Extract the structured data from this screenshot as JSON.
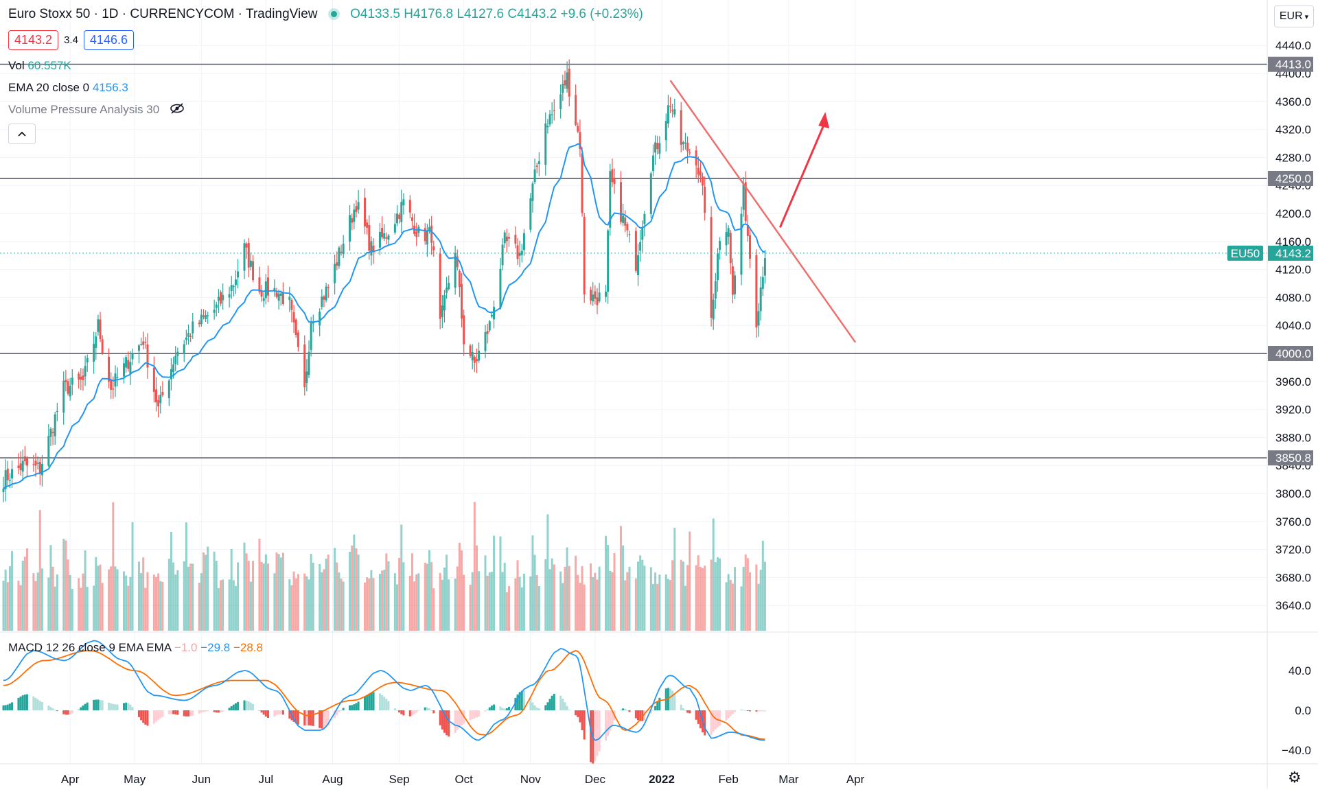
{
  "header": {
    "symbol": "Euro Stoxx 50 · 1D · CURRENCYCOM · TradingView",
    "o": "O4133.5",
    "h": "H4176.8",
    "l": "L4127.6",
    "c": "C4143.2",
    "change": "+9.6 (+0.23%)"
  },
  "price_boxes": {
    "sell": "4143.2",
    "spread": "3.4",
    "buy": "4146.6"
  },
  "indicators": {
    "vol_label": "Vol",
    "vol_value": "60.557K",
    "ema_label": "EMA 20 close 0",
    "ema_value": "4156.3",
    "vpa_label": "Volume Pressure Analysis 30",
    "macd_label": "MACD 12 26 close 9 EMA EMA",
    "macd_hist": "−1.0",
    "macd_line": "−29.8",
    "macd_signal": "−28.8"
  },
  "currency": "EUR",
  "symbol_tag": "EU50",
  "colors": {
    "up": "#26a69a",
    "down": "#ef5350",
    "ema": "#2196f3",
    "signal": "#ff6d00",
    "trendline": "#ef6e6e",
    "arrow": "#f23645",
    "level": "#787b86"
  },
  "icons": {
    "eye": "eye-crossed-icon",
    "collapse": "chevron-up-icon",
    "settings": "gear-icon"
  },
  "chart_data": [
    {
      "type": "candlestick",
      "price_axis_ticks": [
        "4440.0",
        "4400.0",
        "4360.0",
        "4320.0",
        "4280.0",
        "4240.0",
        "4200.0",
        "4160.0",
        "4120.0",
        "4080.0",
        "4040.0",
        "4000.0",
        "3960.0",
        "3920.0",
        "3880.0",
        "3840.0",
        "3800.0",
        "3760.0",
        "3720.0",
        "3680.0",
        "3640.0"
      ],
      "time_axis_ticks": [
        "Apr",
        "May",
        "Jun",
        "Jul",
        "Aug",
        "Sep",
        "Oct",
        "Nov",
        "Dec",
        "2022",
        "Feb",
        "Mar",
        "Apr"
      ],
      "horizontal_levels": [
        {
          "value": 4413.0,
          "label": "4413.0"
        },
        {
          "value": 4250.0,
          "label": "4250.0"
        },
        {
          "value": 4000.0,
          "label": "4000.0"
        },
        {
          "value": 3850.8,
          "label": "3850.8"
        }
      ],
      "last_price": {
        "value": 4143.2,
        "label": "4143.2"
      },
      "trendline": {
        "from": [
          "2022-01-05",
          4390
        ],
        "to": [
          "2022-04-01",
          4016
        ]
      },
      "arrow": {
        "from": [
          "2022-02-25",
          4180
        ],
        "to": [
          "2022-03-18",
          4345
        ]
      },
      "anchors": [
        [
          "2021-03-01",
          3820
        ],
        [
          "2021-03-10",
          3840
        ],
        [
          "2021-03-18",
          3835
        ],
        [
          "2021-03-29",
          3950
        ],
        [
          "2021-04-07",
          3960
        ],
        [
          "2021-04-14",
          4040
        ],
        [
          "2021-04-20",
          3950
        ],
        [
          "2021-04-27",
          3985
        ],
        [
          "2021-05-05",
          4020
        ],
        [
          "2021-05-12",
          3920
        ],
        [
          "2021-05-20",
          4000
        ],
        [
          "2021-05-28",
          4035
        ],
        [
          "2021-06-08",
          4065
        ],
        [
          "2021-06-16",
          4100
        ],
        [
          "2021-06-21",
          4150
        ],
        [
          "2021-06-28",
          4090
        ],
        [
          "2021-07-06",
          4090
        ],
        [
          "2021-07-12",
          4070
        ],
        [
          "2021-07-19",
          3945
        ],
        [
          "2021-07-22",
          4050
        ],
        [
          "2021-07-30",
          4095
        ],
        [
          "2021-08-06",
          4160
        ],
        [
          "2021-08-12",
          4215
        ],
        [
          "2021-08-19",
          4150
        ],
        [
          "2021-08-26",
          4170
        ],
        [
          "2021-09-03",
          4215
        ],
        [
          "2021-09-10",
          4170
        ],
        [
          "2021-09-16",
          4170
        ],
        [
          "2021-09-20",
          4040
        ],
        [
          "2021-09-27",
          4150
        ],
        [
          "2021-10-01",
          4020
        ],
        [
          "2021-10-06",
          3985
        ],
        [
          "2021-10-13",
          4040
        ],
        [
          "2021-10-20",
          4160
        ],
        [
          "2021-10-27",
          4140
        ],
        [
          "2021-11-01",
          4220
        ],
        [
          "2021-11-08",
          4330
        ],
        [
          "2021-11-12",
          4345
        ],
        [
          "2021-11-18",
          4395
        ],
        [
          "2021-11-24",
          4300
        ],
        [
          "2021-11-26",
          4090
        ],
        [
          "2021-11-30",
          4080
        ],
        [
          "2021-12-06",
          4080
        ],
        [
          "2021-12-08",
          4250
        ],
        [
          "2021-12-13",
          4200
        ],
        [
          "2021-12-20",
          4130
        ],
        [
          "2021-12-27",
          4270
        ],
        [
          "2022-01-05",
          4360
        ],
        [
          "2022-01-10",
          4300
        ],
        [
          "2022-01-17",
          4280
        ],
        [
          "2022-01-21",
          4210
        ],
        [
          "2022-01-24",
          4040
        ],
        [
          "2022-01-27",
          4150
        ],
        [
          "2022-02-01",
          4190
        ],
        [
          "2022-02-03",
          4080
        ],
        [
          "2022-02-08",
          4230
        ],
        [
          "2022-02-14",
          4050
        ],
        [
          "2022-02-18",
          4143
        ]
      ]
    },
    {
      "type": "bar",
      "series": "volume",
      "note_pattern": [
        0.25,
        0.35,
        0.3,
        0.4,
        0.5,
        0.3,
        0.35,
        0.45,
        0.7,
        0.55,
        0.4,
        0.35,
        0.5,
        0.9,
        0.6,
        0.45,
        0.55,
        0.4,
        0.35,
        0.5,
        0.75,
        0.65,
        0.5,
        0.45
      ]
    },
    {
      "type": "line",
      "series_names": [
        "MACD",
        "Signal",
        "Histogram"
      ],
      "axis_ticks": [
        "40.0",
        "0.0",
        "−40.0"
      ],
      "macd_anchors": [
        [
          "2021-03-01",
          30
        ],
        [
          "2021-03-15",
          60
        ],
        [
          "2021-03-29",
          50
        ],
        [
          "2021-04-12",
          70
        ],
        [
          "2021-04-26",
          50
        ],
        [
          "2021-05-10",
          15
        ],
        [
          "2021-05-24",
          10
        ],
        [
          "2021-06-07",
          25
        ],
        [
          "2021-06-21",
          40
        ],
        [
          "2021-07-05",
          20
        ],
        [
          "2021-07-19",
          -20
        ],
        [
          "2021-07-26",
          -20
        ],
        [
          "2021-08-09",
          15
        ],
        [
          "2021-08-23",
          40
        ],
        [
          "2021-09-06",
          20
        ],
        [
          "2021-09-13",
          25
        ],
        [
          "2021-09-27",
          -15
        ],
        [
          "2021-10-08",
          -30
        ],
        [
          "2021-10-18",
          -10
        ],
        [
          "2021-11-01",
          25
        ],
        [
          "2021-11-15",
          62
        ],
        [
          "2021-11-22",
          55
        ],
        [
          "2021-12-01",
          -30
        ],
        [
          "2021-12-10",
          -15
        ],
        [
          "2021-12-20",
          -22
        ],
        [
          "2022-01-05",
          35
        ],
        [
          "2022-01-14",
          22
        ],
        [
          "2022-01-24",
          -28
        ],
        [
          "2022-02-02",
          -22
        ],
        [
          "2022-02-18",
          -30
        ]
      ],
      "signal_anchors": [
        [
          "2021-03-01",
          25
        ],
        [
          "2021-03-20",
          50
        ],
        [
          "2021-04-10",
          60
        ],
        [
          "2021-05-01",
          40
        ],
        [
          "2021-05-20",
          15
        ],
        [
          "2021-06-15",
          30
        ],
        [
          "2021-07-01",
          30
        ],
        [
          "2021-07-20",
          -5
        ],
        [
          "2021-08-10",
          10
        ],
        [
          "2021-08-30",
          28
        ],
        [
          "2021-09-20",
          20
        ],
        [
          "2021-10-10",
          -25
        ],
        [
          "2021-10-25",
          -5
        ],
        [
          "2021-11-10",
          40
        ],
        [
          "2021-11-22",
          60
        ],
        [
          "2021-12-05",
          10
        ],
        [
          "2021-12-15",
          -20
        ],
        [
          "2022-01-01",
          10
        ],
        [
          "2022-01-14",
          25
        ],
        [
          "2022-01-28",
          -10
        ],
        [
          "2022-02-08",
          -25
        ],
        [
          "2022-02-18",
          -29
        ]
      ]
    }
  ]
}
